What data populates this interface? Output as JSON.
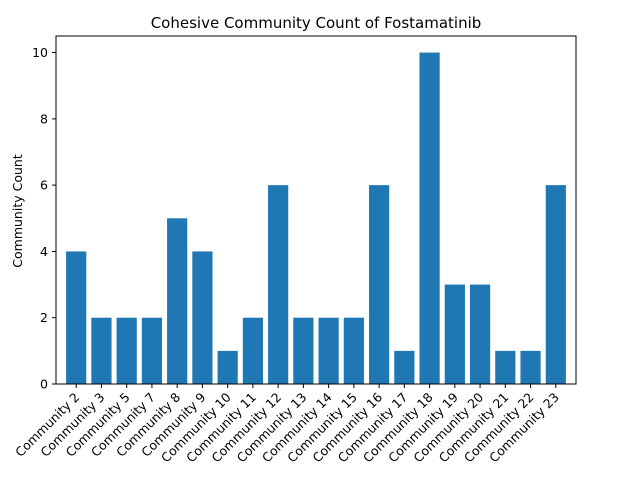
{
  "chart_data": {
    "type": "bar",
    "title": "Cohesive Community Count of Fostamatinib",
    "xlabel": "",
    "ylabel": "Community Count",
    "categories": [
      "Community 2",
      "Community 3",
      "Community 5",
      "Community 7",
      "Community 8",
      "Community 9",
      "Community 10",
      "Community 11",
      "Community 12",
      "Community 13",
      "Community 14",
      "Community 15",
      "Community 16",
      "Community 17",
      "Community 18",
      "Community 19",
      "Community 20",
      "Community 21",
      "Community 22",
      "Community 23"
    ],
    "values": [
      4,
      2,
      2,
      2,
      5,
      4,
      1,
      2,
      6,
      2,
      2,
      2,
      6,
      1,
      10,
      3,
      3,
      1,
      1,
      6
    ],
    "ylim": [
      0,
      10.5
    ],
    "yticks": [
      0,
      2,
      4,
      6,
      8,
      10
    ],
    "grid": false,
    "bar_color": "#1f77b4"
  }
}
